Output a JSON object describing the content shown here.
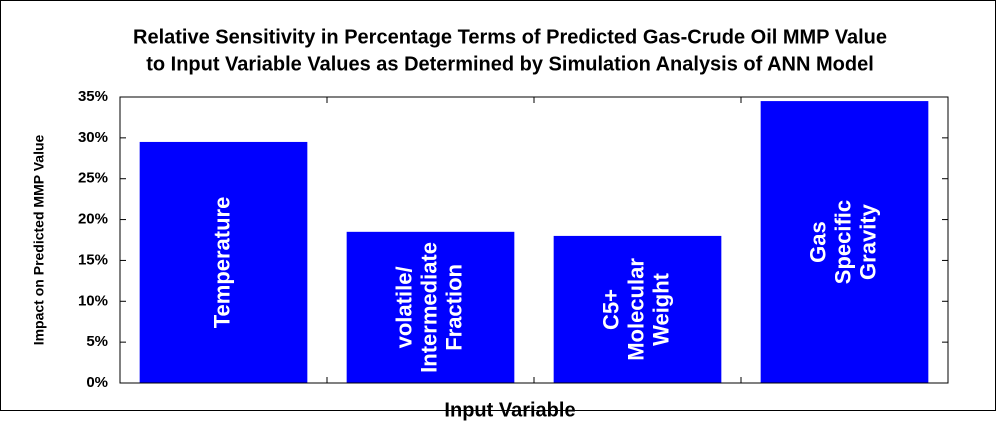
{
  "chart_data": {
    "type": "bar",
    "title": [
      "Relative Sensitivity in Percentage Terms of Predicted  Gas-Crude Oil MMP Value",
      "to Input Variable Values as Determined by Simulation Analysis of ANN Model"
    ],
    "x_label": "Input Variable",
    "y_label": "Impact on Predicted MMP Value",
    "categories": [
      [
        "Temperature"
      ],
      [
        "volatile/",
        "Intermediate",
        "Fraction"
      ],
      [
        "C5+",
        "Molecular",
        "Weight"
      ],
      [
        "Gas",
        "Specific",
        "Gravity"
      ]
    ],
    "values": [
      29.5,
      18.5,
      18.0,
      34.5
    ],
    "color": "#0000ff",
    "ylim": [
      0,
      35
    ],
    "yticks": [
      {
        "value": 0,
        "label": "0%"
      },
      {
        "value": 5,
        "label": "5%"
      },
      {
        "value": 10,
        "label": "10%"
      },
      {
        "value": 15,
        "label": "15%"
      },
      {
        "value": 20,
        "label": "20%"
      },
      {
        "value": 25,
        "label": "25%"
      },
      {
        "value": 30,
        "label": "30%"
      },
      {
        "value": 35,
        "label": "35%"
      }
    ]
  }
}
